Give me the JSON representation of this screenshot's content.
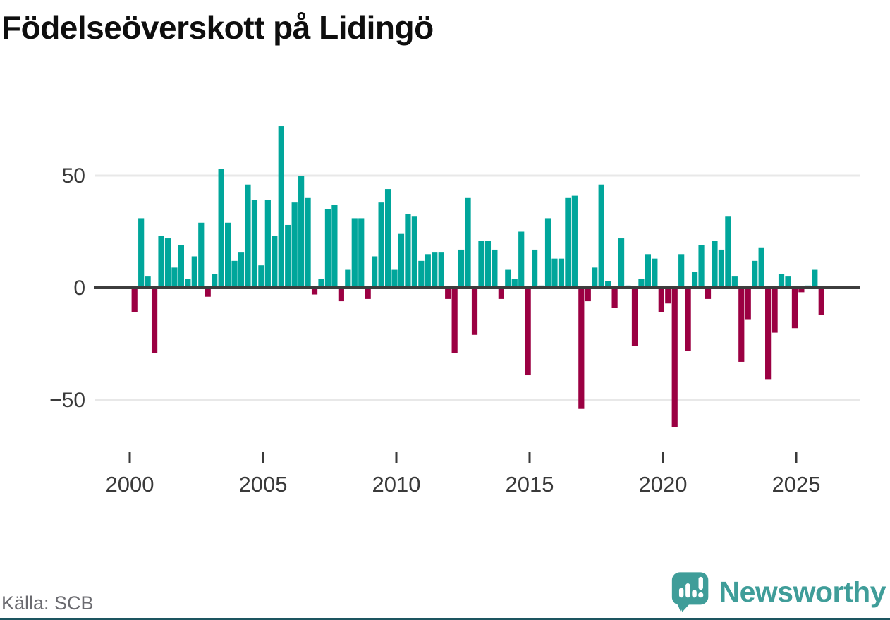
{
  "title": "Födelseöverskott på Lidingö",
  "source": {
    "text": "Källa: SCB"
  },
  "brand": {
    "name": "Newsworthy",
    "color": "#3f9d99"
  },
  "colors": {
    "positive": "#00a69b",
    "negative": "#9b0042",
    "zero_axis": "#3d3d3d",
    "gridline": "#e8e8e8",
    "axis_text": "#3a3a3a"
  },
  "chart_data": {
    "type": "bar",
    "title": "Födelseöverskott på Lidingö",
    "frequency": "quarterly",
    "x_start": "2000-Q1",
    "x_end": "2025-Q4",
    "x_tick_labels": [
      "2000",
      "2005",
      "2010",
      "2015",
      "2020",
      "2025"
    ],
    "y_ticks": [
      50,
      0,
      -50
    ],
    "y_tick_labels": [
      "50",
      "0",
      "−50"
    ],
    "ylim": [
      -65,
      75
    ],
    "grid": "horizontal",
    "legend": "none",
    "series": [
      {
        "name": "Födelseöverskott",
        "values": [
          -11,
          31,
          5,
          -29,
          23,
          22,
          9,
          19,
          4,
          14,
          29,
          -4,
          6,
          53,
          29,
          12,
          16,
          46,
          39,
          10,
          39,
          23,
          72,
          28,
          38,
          50,
          40,
          -3,
          4,
          35,
          37,
          -6,
          8,
          31,
          31,
          -5,
          14,
          38,
          44,
          8,
          24,
          33,
          32,
          12,
          15,
          16,
          16,
          -5,
          -29,
          17,
          40,
          -21,
          21,
          21,
          17,
          -5,
          8,
          4,
          25,
          -39,
          17,
          1,
          31,
          13,
          13,
          40,
          41,
          -54,
          -6,
          9,
          46,
          3,
          -9,
          22,
          1,
          -26,
          4,
          15,
          13,
          -11,
          -7,
          -62,
          15,
          -28,
          7,
          19,
          -5,
          21,
          17,
          32,
          5,
          -33,
          -14,
          12,
          18,
          -41,
          -20,
          6,
          5,
          -18,
          -2,
          1,
          8,
          -12
        ]
      }
    ]
  }
}
